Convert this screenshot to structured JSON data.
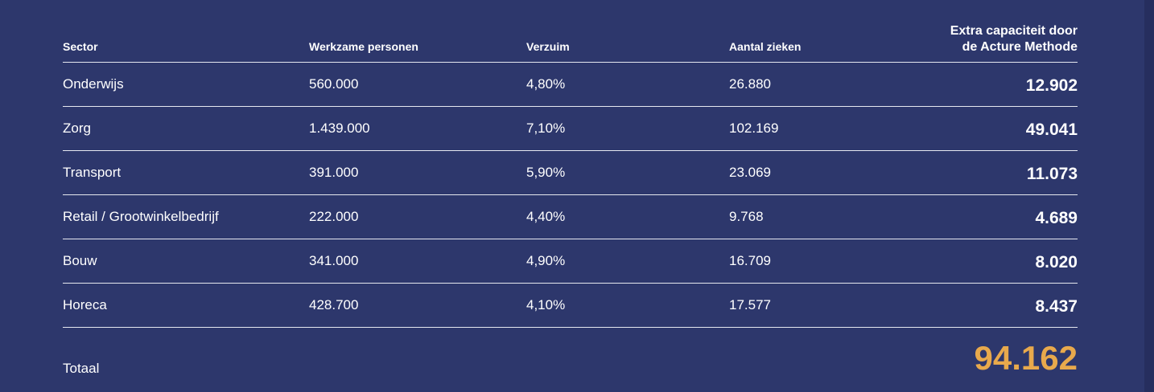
{
  "table": {
    "headers": {
      "sector": "Sector",
      "werkzame": "Werkzame personen",
      "verzuim": "Verzuim",
      "zieken": "Aantal zieken",
      "extra_line1": "Extra capaciteit door",
      "extra_line2": "de Acture Methode"
    },
    "rows": [
      {
        "sector": "Onderwijs",
        "werkzame": "560.000",
        "verzuim": "4,80%",
        "zieken": "26.880",
        "extra": "12.902"
      },
      {
        "sector": "Zorg",
        "werkzame": "1.439.000",
        "verzuim": "7,10%",
        "zieken": "102.169",
        "extra": "49.041"
      },
      {
        "sector": "Transport",
        "werkzame": "391.000",
        "verzuim": "5,90%",
        "zieken": "23.069",
        "extra": "11.073"
      },
      {
        "sector": "Retail / Grootwinkelbedrijf",
        "werkzame": "222.000",
        "verzuim": "4,40%",
        "zieken": "9.768",
        "extra": "4.689"
      },
      {
        "sector": "Bouw",
        "werkzame": "341.000",
        "verzuim": "4,90%",
        "zieken": "16.709",
        "extra": "8.020"
      },
      {
        "sector": "Horeca",
        "werkzame": "428.700",
        "verzuim": "4,10%",
        "zieken": "17.577",
        "extra": "8.437"
      }
    ],
    "total": {
      "label": "Totaal",
      "value": "94.162"
    }
  },
  "colors": {
    "background": "#2d376c",
    "text": "#ffffff",
    "accent": "#e8a94c",
    "divider": "#e6e8f0"
  }
}
